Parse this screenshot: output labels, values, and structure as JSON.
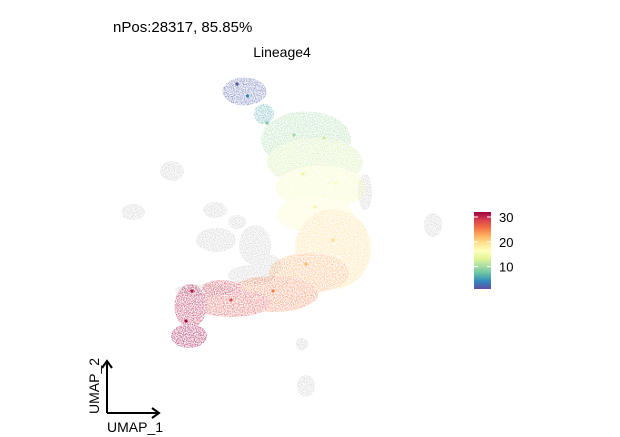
{
  "chart_data": {
    "type": "scatter",
    "subtitle": "nPos:28317, 85.85%",
    "title": "Lineage4",
    "xlabel": "UMAP_1",
    "ylabel": "UMAP_2",
    "grid": false,
    "legend_placement": "right",
    "colorbar": {
      "ticks": [
        10,
        20,
        30
      ],
      "range": [
        1,
        32
      ],
      "palette": [
        "#5E4FA2",
        "#3288BD",
        "#66C2A5",
        "#ABDDA4",
        "#E6F598",
        "#FFFFBF",
        "#FEE08B",
        "#FDAE61",
        "#F46D43",
        "#D53E4F",
        "#9E0142"
      ]
    },
    "background_color": "#C8C8C8",
    "trajectory_points": [
      {
        "umap_1": -2.1,
        "umap_2": 4.7,
        "pseudotime": 1
      },
      {
        "umap_1": -1.75,
        "umap_2": 4.3,
        "pseudotime": 4
      },
      {
        "umap_1": -1.1,
        "umap_2": 3.4,
        "pseudotime": 8
      },
      {
        "umap_1": -0.2,
        "umap_2": 3.0,
        "pseudotime": 10
      },
      {
        "umap_1": 0.8,
        "umap_2": 2.9,
        "pseudotime": 12
      },
      {
        "umap_1": 0.1,
        "umap_2": 1.7,
        "pseudotime": 14
      },
      {
        "umap_1": 1.2,
        "umap_2": 1.4,
        "pseudotime": 16
      },
      {
        "umap_1": 0.5,
        "umap_2": 0.6,
        "pseudotime": 18
      },
      {
        "umap_1": 1.1,
        "umap_2": -0.5,
        "pseudotime": 20
      },
      {
        "umap_1": 0.2,
        "umap_2": -1.3,
        "pseudotime": 22
      },
      {
        "umap_1": -0.9,
        "umap_2": -2.2,
        "pseudotime": 25
      },
      {
        "umap_1": -2.3,
        "umap_2": -2.5,
        "pseudotime": 28
      },
      {
        "umap_1": -3.6,
        "umap_2": -2.2,
        "pseudotime": 31
      },
      {
        "umap_1": -3.8,
        "umap_2": -3.2,
        "pseudotime": 32
      }
    ]
  }
}
